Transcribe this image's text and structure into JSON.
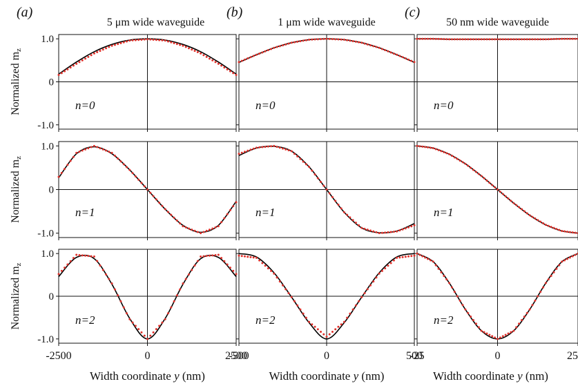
{
  "figure": {
    "ylabel": "Normalized m",
    "ylabel_sub": "z",
    "xlabel_prefix": "Width coordinate ",
    "xlabel_var": "y",
    "xlabel_suffix": " (nm)"
  },
  "colors": {
    "simulation": "#000000",
    "theory": "#e0312b",
    "axes": "#111111"
  },
  "chart_data": [
    {
      "type": "line",
      "panel_label": "(a)",
      "title": "5 μm wide waveguide",
      "xlim": [
        -2500,
        2500
      ],
      "ylim": [
        -1.1,
        1.1
      ],
      "xticks": [
        -2500,
        0,
        2500
      ],
      "xticklabels": [
        "-2500",
        "0",
        "2500"
      ],
      "yticks": [
        1.0,
        0,
        -1.0
      ],
      "yticklabels": [
        "1.0",
        "0",
        "-1.0"
      ],
      "modes": [
        {
          "label": "n=0",
          "x": [
            -2500,
            -2000,
            -1500,
            -1000,
            -500,
            0,
            500,
            1000,
            1500,
            2000,
            2500
          ],
          "line": [
            0.18,
            0.46,
            0.7,
            0.87,
            0.97,
            1.0,
            0.97,
            0.87,
            0.7,
            0.46,
            0.18
          ],
          "dots": [
            0.16,
            0.42,
            0.66,
            0.84,
            0.96,
            0.99,
            0.96,
            0.84,
            0.66,
            0.42,
            0.16
          ]
        },
        {
          "label": "n=1",
          "x": [
            -2500,
            -2000,
            -1500,
            -1000,
            -500,
            0,
            500,
            1000,
            1500,
            2000,
            2500
          ],
          "line": [
            0.27,
            0.82,
            0.98,
            0.82,
            0.45,
            0.0,
            -0.45,
            -0.82,
            -0.98,
            -0.82,
            -0.27
          ],
          "dots": [
            0.29,
            0.84,
            1.0,
            0.84,
            0.45,
            0.0,
            -0.45,
            -0.84,
            -1.0,
            -0.84,
            -0.29
          ]
        },
        {
          "label": "n=2",
          "x": [
            -2500,
            -2000,
            -1500,
            -1000,
            -500,
            0,
            500,
            1000,
            1500,
            2000,
            2500
          ],
          "line": [
            0.46,
            0.91,
            0.88,
            0.28,
            -0.52,
            -1.0,
            -0.52,
            0.28,
            0.88,
            0.91,
            0.46
          ],
          "dots": [
            0.52,
            0.97,
            0.93,
            0.3,
            -0.54,
            -1.0,
            -0.54,
            0.3,
            0.93,
            0.97,
            0.52
          ]
        }
      ]
    },
    {
      "type": "line",
      "panel_label": "(b)",
      "title": "1 μm wide waveguide",
      "xlim": [
        -500,
        500
      ],
      "ylim": [
        -1.1,
        1.1
      ],
      "xticks": [
        -500,
        0,
        500
      ],
      "xticklabels": [
        "-500",
        "0",
        "500"
      ],
      "yticks": [
        1.0,
        0,
        -1.0
      ],
      "yticklabels": [
        "",
        "",
        ""
      ],
      "modes": [
        {
          "label": "n=0",
          "x": [
            -500,
            -400,
            -300,
            -200,
            -100,
            0,
            100,
            200,
            300,
            400,
            500
          ],
          "line": [
            0.45,
            0.63,
            0.79,
            0.91,
            0.98,
            1.0,
            0.98,
            0.91,
            0.79,
            0.63,
            0.45
          ],
          "dots": [
            0.46,
            0.63,
            0.79,
            0.91,
            0.98,
            1.0,
            0.98,
            0.91,
            0.79,
            0.63,
            0.46
          ]
        },
        {
          "label": "n=1",
          "x": [
            -500,
            -400,
            -300,
            -200,
            -100,
            0,
            100,
            200,
            300,
            400,
            500
          ],
          "line": [
            0.78,
            0.95,
            0.99,
            0.88,
            0.52,
            0.0,
            -0.52,
            -0.88,
            -0.99,
            -0.95,
            -0.78
          ],
          "dots": [
            0.82,
            0.96,
            1.0,
            0.88,
            0.52,
            0.0,
            -0.52,
            -0.88,
            -1.0,
            -0.96,
            -0.82
          ]
        },
        {
          "label": "n=2",
          "x": [
            -500,
            -400,
            -300,
            -200,
            -100,
            0,
            100,
            200,
            300,
            400,
            500
          ],
          "line": [
            1.0,
            0.92,
            0.55,
            -0.02,
            -0.62,
            -1.0,
            -0.62,
            -0.02,
            0.55,
            0.92,
            1.0
          ],
          "dots": [
            0.95,
            0.9,
            0.53,
            -0.02,
            -0.6,
            -0.95,
            -0.6,
            -0.02,
            0.53,
            0.9,
            0.95
          ]
        }
      ]
    },
    {
      "type": "line",
      "panel_label": "(c)",
      "title": "50 nm wide waveguide",
      "xlim": [
        -25,
        25
      ],
      "ylim": [
        -1.1,
        1.1
      ],
      "xticks": [
        -25,
        0,
        25
      ],
      "xticklabels": [
        "-25",
        "0",
        "25"
      ],
      "yticks": [
        1.0,
        0,
        -1.0
      ],
      "yticklabels": [
        "",
        "",
        ""
      ],
      "modes": [
        {
          "label": "n=0",
          "x": [
            -25,
            -20,
            -15,
            -10,
            -5,
            0,
            5,
            10,
            15,
            20,
            25
          ],
          "line": [
            1.0,
            1.0,
            0.99,
            0.99,
            0.99,
            0.99,
            0.99,
            0.99,
            0.99,
            1.0,
            1.0
          ],
          "dots": [
            1.0,
            1.0,
            0.99,
            0.99,
            0.99,
            0.99,
            0.99,
            0.99,
            0.99,
            1.0,
            1.0
          ]
        },
        {
          "label": "n=1",
          "x": [
            -25,
            -20,
            -15,
            -10,
            -5,
            0,
            5,
            10,
            15,
            20,
            25
          ],
          "line": [
            1.0,
            0.95,
            0.81,
            0.59,
            0.31,
            0.0,
            -0.31,
            -0.59,
            -0.81,
            -0.95,
            -1.0
          ],
          "dots": [
            1.0,
            0.95,
            0.81,
            0.59,
            0.31,
            0.0,
            -0.31,
            -0.59,
            -0.81,
            -0.95,
            -1.0
          ]
        },
        {
          "label": "n=2",
          "x": [
            -25,
            -20,
            -15,
            -10,
            -5,
            0,
            5,
            10,
            15,
            20,
            25
          ],
          "line": [
            1.0,
            0.81,
            0.31,
            -0.31,
            -0.81,
            -1.0,
            -0.81,
            -0.31,
            0.31,
            0.81,
            1.0
          ],
          "dots": [
            1.0,
            0.81,
            0.31,
            -0.31,
            -0.81,
            -1.0,
            -0.81,
            -0.31,
            0.31,
            0.81,
            1.0
          ]
        }
      ]
    }
  ]
}
